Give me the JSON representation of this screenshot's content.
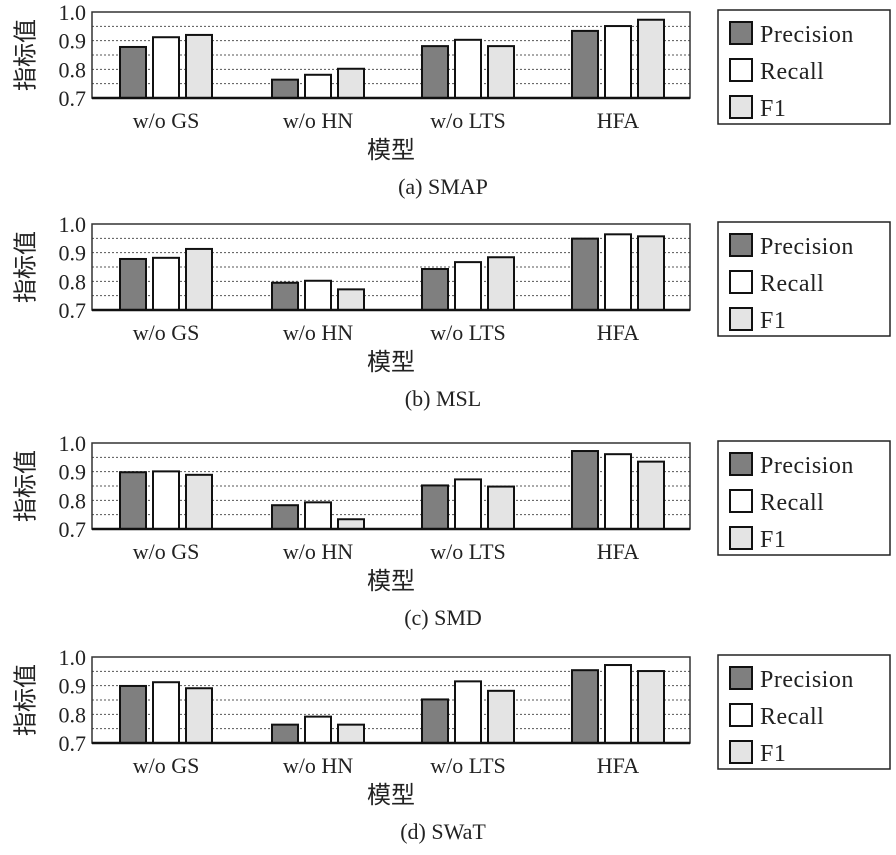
{
  "chart_data": [
    {
      "type": "bar",
      "title": "(a) SMAP",
      "xlabel": "模型",
      "ylabel": "指标值",
      "categories": [
        "w/o GS",
        "w/o HN",
        "w/o LTS",
        "HFA"
      ],
      "ylim": [
        0.7,
        1.0
      ],
      "yticks": [
        "0.7",
        "0.8",
        "0.9",
        "1.0"
      ],
      "grid": true,
      "legend": "right",
      "series": [
        {
          "name": "Precision",
          "values": [
            0.878,
            0.764,
            0.881,
            0.934
          ]
        },
        {
          "name": "Recall",
          "values": [
            0.912,
            0.781,
            0.903,
            0.951
          ]
        },
        {
          "name": "F1",
          "values": [
            0.92,
            0.802,
            0.881,
            0.973
          ]
        }
      ]
    },
    {
      "type": "bar",
      "title": "(b) MSL",
      "xlabel": "模型",
      "ylabel": "指标值",
      "categories": [
        "w/o GS",
        "w/o HN",
        "w/o LTS",
        "HFA"
      ],
      "ylim": [
        0.7,
        1.0
      ],
      "yticks": [
        "0.7",
        "0.8",
        "0.9",
        "1.0"
      ],
      "grid": true,
      "legend": "right",
      "series": [
        {
          "name": "Precision",
          "values": [
            0.878,
            0.795,
            0.843,
            0.949
          ]
        },
        {
          "name": "Recall",
          "values": [
            0.882,
            0.802,
            0.867,
            0.964
          ]
        },
        {
          "name": "F1",
          "values": [
            0.913,
            0.772,
            0.884,
            0.957
          ]
        }
      ]
    },
    {
      "type": "bar",
      "title": "(c) SMD",
      "xlabel": "模型",
      "ylabel": "指标值",
      "categories": [
        "w/o GS",
        "w/o HN",
        "w/o LTS",
        "HFA"
      ],
      "ylim": [
        0.7,
        1.0
      ],
      "yticks": [
        "0.7",
        "0.8",
        "0.9",
        "1.0"
      ],
      "grid": true,
      "legend": "right",
      "series": [
        {
          "name": "Precision",
          "values": [
            0.898,
            0.783,
            0.852,
            0.972
          ]
        },
        {
          "name": "Recall",
          "values": [
            0.901,
            0.793,
            0.873,
            0.961
          ]
        },
        {
          "name": "F1",
          "values": [
            0.889,
            0.734,
            0.848,
            0.935
          ]
        }
      ]
    },
    {
      "type": "bar",
      "title": "(d) SWaT",
      "xlabel": "模型",
      "ylabel": "指标值",
      "categories": [
        "w/o GS",
        "w/o HN",
        "w/o LTS",
        "HFA"
      ],
      "ylim": [
        0.7,
        1.0
      ],
      "yticks": [
        "0.7",
        "0.8",
        "0.9",
        "1.0"
      ],
      "grid": true,
      "legend": "right",
      "series": [
        {
          "name": "Precision",
          "values": [
            0.899,
            0.764,
            0.852,
            0.954
          ]
        },
        {
          "name": "Recall",
          "values": [
            0.912,
            0.792,
            0.915,
            0.972
          ]
        },
        {
          "name": "F1",
          "values": [
            0.891,
            0.764,
            0.882,
            0.951
          ]
        }
      ]
    }
  ],
  "colors": {
    "Precision": "#7f7f7f",
    "Recall": "#ffffff",
    "F1": "#e4e4e4",
    "outline": "#111111",
    "grid": "#555555"
  }
}
